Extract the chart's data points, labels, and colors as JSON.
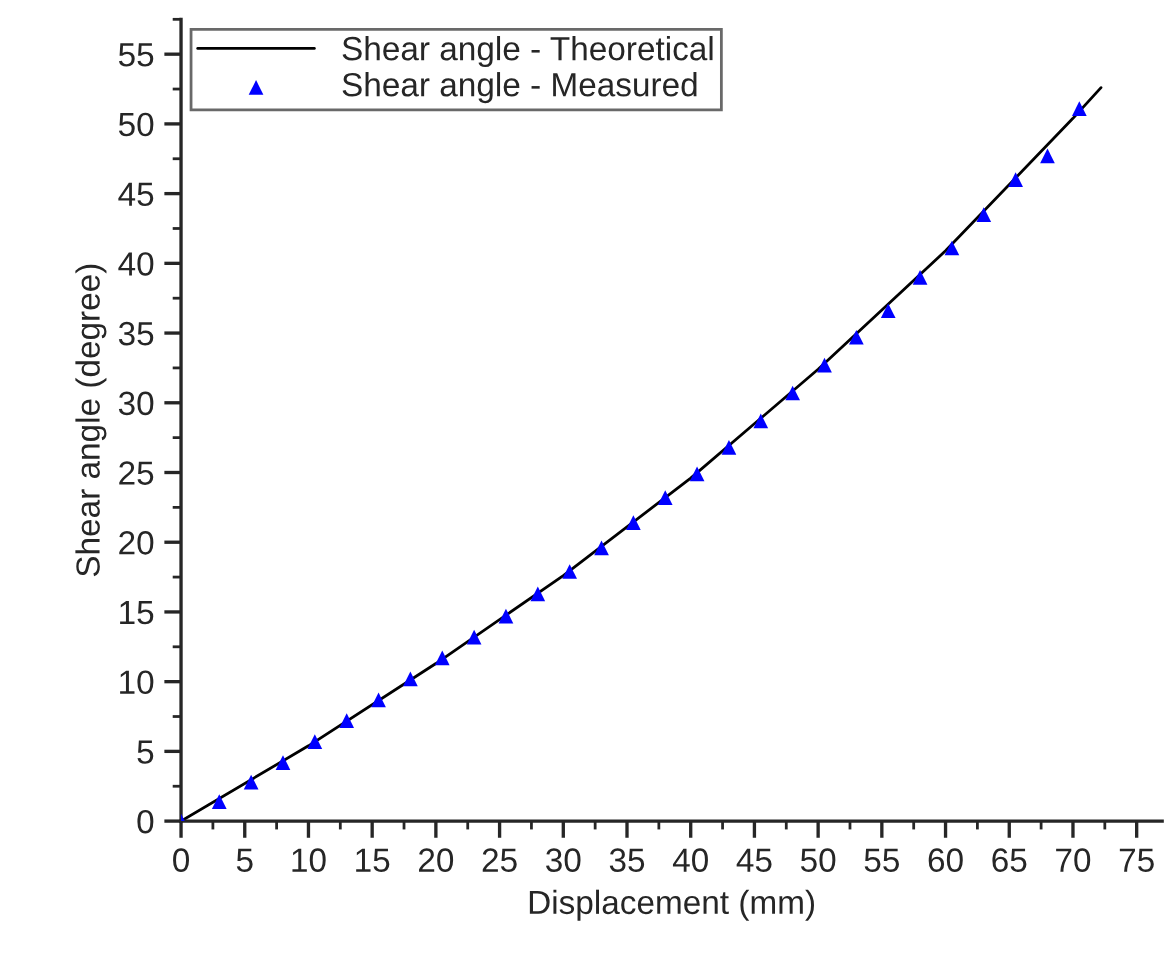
{
  "chart_data": {
    "type": "line",
    "xlabel": "Displacement (mm)",
    "ylabel": "Shear angle (degree)",
    "xlim": [
      0,
      77
    ],
    "ylim": [
      0,
      57.5
    ],
    "xticks": [
      0,
      5,
      10,
      15,
      20,
      25,
      30,
      35,
      40,
      45,
      50,
      55,
      60,
      65,
      70,
      75
    ],
    "yticks": [
      0,
      5,
      10,
      15,
      20,
      25,
      30,
      35,
      40,
      45,
      50,
      55
    ],
    "grid": false,
    "legend": "top left",
    "series": [
      {
        "name": "Shear angle - Theoretical",
        "color": "#000000",
        "marker": "none",
        "line_style": "solid",
        "x": [
          0,
          10,
          20,
          30,
          40,
          50,
          60,
          70,
          72.2
        ],
        "values": [
          0,
          5.4,
          11.3,
          17.6,
          24.6,
          32.4,
          40.9,
          50.4,
          52.6
        ]
      },
      {
        "name": "Shear angle - Measured",
        "type": "scatter",
        "color": "#0000ff",
        "marker": "triangle",
        "x": [
          0,
          3,
          5.5,
          8,
          10.5,
          13,
          15.5,
          18,
          20.5,
          23,
          25.5,
          28,
          30.5,
          33,
          35.5,
          38,
          40.5,
          43,
          45.5,
          48,
          50.5,
          53,
          55.5,
          58,
          60.5,
          63,
          65.5,
          68,
          70.5
        ],
        "values": [
          0,
          1.4,
          2.8,
          4.2,
          5.7,
          7.2,
          8.7,
          10.2,
          11.7,
          13.2,
          14.7,
          16.3,
          17.9,
          19.6,
          21.4,
          23.2,
          24.9,
          26.8,
          28.7,
          30.7,
          32.7,
          34.7,
          36.6,
          39.0,
          41.1,
          43.5,
          46.0,
          47.7,
          51.1
        ]
      }
    ]
  }
}
